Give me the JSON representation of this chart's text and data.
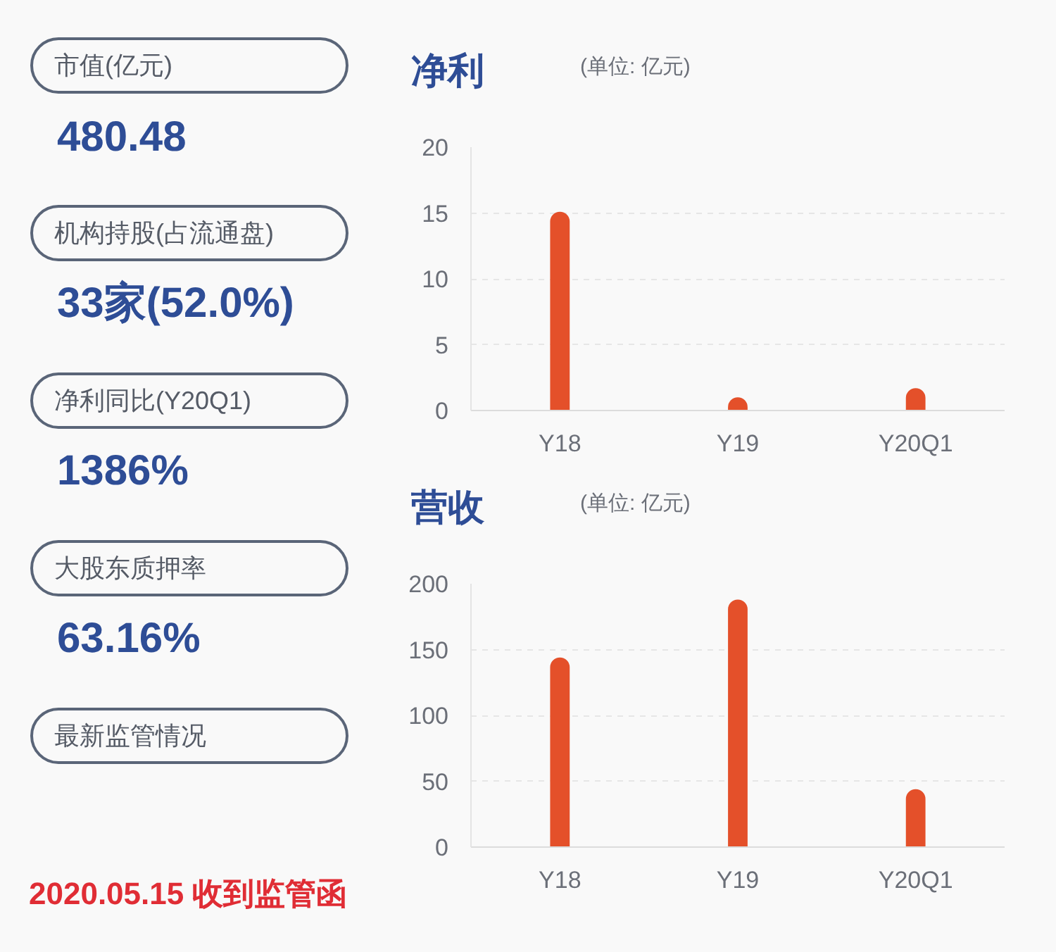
{
  "chart_data": [
    {
      "type": "other",
      "annotations": [
        "市值(亿元)",
        "480.48",
        "机构持股(占流通盘)",
        "33家(52.0%)",
        "净利同比(Y20Q1)",
        "1386%",
        "大股东质押率",
        "63.16%",
        "最新监管情况",
        "2020.05.15 收到监管函"
      ]
    },
    {
      "type": "bar",
      "title": "净利",
      "subtitle": "(单位: 亿元)",
      "categories": [
        "Y18",
        "Y19",
        "Y20Q1"
      ],
      "values": [
        15.1,
        1.0,
        1.7
      ],
      "color": "#e4502a",
      "ylim": [
        0,
        20
      ],
      "yticks": [
        0,
        5,
        10,
        15,
        20
      ],
      "grid": "y"
    },
    {
      "type": "bar",
      "title": "营收",
      "subtitle": "(单位: 亿元)",
      "categories": [
        "Y18",
        "Y19",
        "Y20Q1"
      ],
      "values": [
        144,
        188,
        44
      ],
      "color": "#e4502a",
      "ylim": [
        0,
        200
      ],
      "yticks": [
        0,
        50,
        100,
        150,
        200
      ],
      "grid": "y"
    }
  ]
}
